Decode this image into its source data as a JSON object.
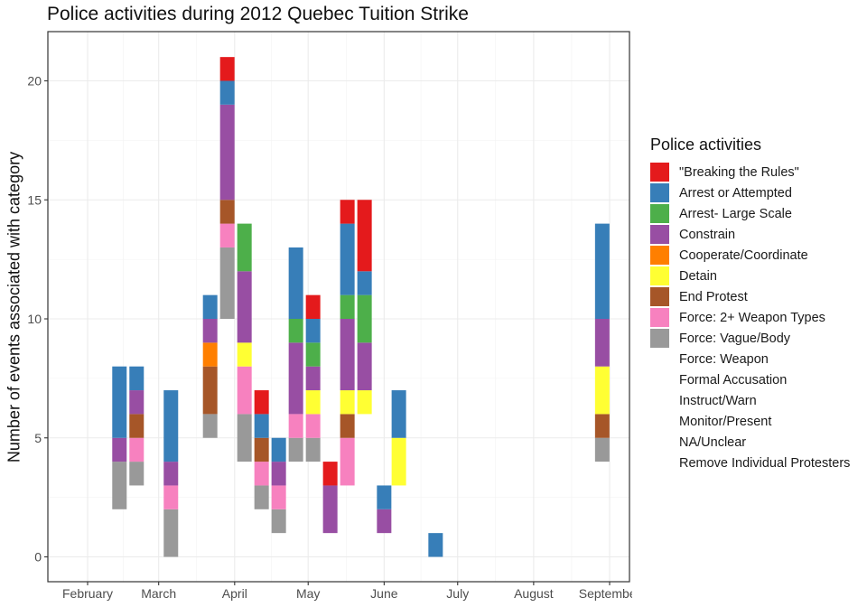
{
  "chart_data": {
    "type": "bar",
    "title": "Police activities during 2012 Quebec Tuition Strike",
    "xlabel": "",
    "ylabel": "Number of events associated with category",
    "ylim": [
      0,
      22
    ],
    "y_ticks": [
      0,
      5,
      10,
      15,
      20
    ],
    "x_ticks": [
      "February",
      "March",
      "April",
      "May",
      "June",
      "July",
      "August",
      "September"
    ],
    "grid": true,
    "legend": {
      "title": "Police activities",
      "placement": "right",
      "items": [
        {
          "label": "\"Breaking the Rules\"",
          "color": "#e41a1c"
        },
        {
          "label": "Arrest or Attempted",
          "color": "#377eb8"
        },
        {
          "label": "Arrest- Large Scale",
          "color": "#4daf4a"
        },
        {
          "label": "Constrain",
          "color": "#984ea3"
        },
        {
          "label": "Cooperate/Coordinate",
          "color": "#ff7f00"
        },
        {
          "label": "Detain",
          "color": "#ffff33"
        },
        {
          "label": "End Protest",
          "color": "#a65628"
        },
        {
          "label": "Force: 2+ Weapon Types",
          "color": "#f781bf"
        },
        {
          "label": "Force: Vague/Body",
          "color": "#999999"
        },
        {
          "label": "Force: Weapon",
          "color": null
        },
        {
          "label": "Formal Accusation",
          "color": null
        },
        {
          "label": "Instruct/Warn",
          "color": null
        },
        {
          "label": "Monitor/Present",
          "color": null
        },
        {
          "label": "NA/Unclear",
          "color": null
        },
        {
          "label": "Remove Individual Protesters",
          "color": null
        }
      ]
    },
    "bars": [
      {
        "x": "2012-02-14",
        "segments": [
          {
            "category": "Force: Vague/Body",
            "from": 2,
            "to": 4
          },
          {
            "category": "Constrain",
            "from": 4,
            "to": 5
          },
          {
            "category": "Arrest or Attempted",
            "from": 5,
            "to": 8
          }
        ]
      },
      {
        "x": "2012-02-21",
        "segments": [
          {
            "category": "Force: Vague/Body",
            "from": 3,
            "to": 4
          },
          {
            "category": "Force: 2+ Weapon Types",
            "from": 4,
            "to": 5
          },
          {
            "category": "End Protest",
            "from": 5,
            "to": 6
          },
          {
            "category": "Constrain",
            "from": 6,
            "to": 7
          },
          {
            "category": "Arrest or Attempted",
            "from": 7,
            "to": 8
          }
        ]
      },
      {
        "x": "2012-03-06",
        "segments": [
          {
            "category": "Force: Vague/Body",
            "from": 0,
            "to": 2
          },
          {
            "category": "Force: 2+ Weapon Types",
            "from": 2,
            "to": 3
          },
          {
            "category": "Constrain",
            "from": 3,
            "to": 4
          },
          {
            "category": "Arrest or Attempted",
            "from": 4,
            "to": 7
          }
        ]
      },
      {
        "x": "2012-03-22",
        "segments": [
          {
            "category": "Force: Vague/Body",
            "from": 5,
            "to": 6
          },
          {
            "category": "End Protest",
            "from": 6,
            "to": 8
          },
          {
            "category": "Cooperate/Coordinate",
            "from": 8,
            "to": 9
          },
          {
            "category": "Constrain",
            "from": 9,
            "to": 10
          },
          {
            "category": "Arrest or Attempted",
            "from": 10,
            "to": 11
          }
        ]
      },
      {
        "x": "2012-03-29",
        "segments": [
          {
            "category": "Force: Vague/Body",
            "from": 10,
            "to": 13
          },
          {
            "category": "Force: 2+ Weapon Types",
            "from": 13,
            "to": 14
          },
          {
            "category": "End Protest",
            "from": 14,
            "to": 15
          },
          {
            "category": "Constrain",
            "from": 15,
            "to": 19
          },
          {
            "category": "Arrest or Attempted",
            "from": 19,
            "to": 20
          },
          {
            "category": "\"Breaking the Rules\"",
            "from": 20,
            "to": 21
          }
        ]
      },
      {
        "x": "2012-04-05",
        "segments": [
          {
            "category": "Force: Vague/Body",
            "from": 4,
            "to": 6
          },
          {
            "category": "Force: 2+ Weapon Types",
            "from": 6,
            "to": 8
          },
          {
            "category": "Detain",
            "from": 8,
            "to": 9
          },
          {
            "category": "Constrain",
            "from": 9,
            "to": 12
          },
          {
            "category": "Arrest- Large Scale",
            "from": 12,
            "to": 14
          }
        ]
      },
      {
        "x": "2012-04-12",
        "segments": [
          {
            "category": "Force: Vague/Body",
            "from": 2,
            "to": 3
          },
          {
            "category": "Force: 2+ Weapon Types",
            "from": 3,
            "to": 4
          },
          {
            "category": "End Protest",
            "from": 4,
            "to": 5
          },
          {
            "category": "Arrest or Attempted",
            "from": 5,
            "to": 6
          },
          {
            "category": "\"Breaking the Rules\"",
            "from": 6,
            "to": 7
          }
        ]
      },
      {
        "x": "2012-04-19",
        "segments": [
          {
            "category": "Force: Vague/Body",
            "from": 1,
            "to": 2
          },
          {
            "category": "Force: 2+ Weapon Types",
            "from": 2,
            "to": 3
          },
          {
            "category": "Constrain",
            "from": 3,
            "to": 4
          },
          {
            "category": "Arrest or Attempted",
            "from": 4,
            "to": 5
          }
        ]
      },
      {
        "x": "2012-04-26",
        "segments": [
          {
            "category": "Force: Vague/Body",
            "from": 4,
            "to": 5
          },
          {
            "category": "Force: 2+ Weapon Types",
            "from": 5,
            "to": 6
          },
          {
            "category": "Constrain",
            "from": 6,
            "to": 9
          },
          {
            "category": "Arrest- Large Scale",
            "from": 9,
            "to": 10
          },
          {
            "category": "Arrest or Attempted",
            "from": 10,
            "to": 13
          }
        ]
      },
      {
        "x": "2012-05-03",
        "segments": [
          {
            "category": "Force: Vague/Body",
            "from": 4,
            "to": 5
          },
          {
            "category": "Force: 2+ Weapon Types",
            "from": 5,
            "to": 6
          },
          {
            "category": "Detain",
            "from": 6,
            "to": 7
          },
          {
            "category": "Constrain",
            "from": 7,
            "to": 8
          },
          {
            "category": "Arrest- Large Scale",
            "from": 8,
            "to": 9
          },
          {
            "category": "Arrest or Attempted",
            "from": 9,
            "to": 10
          },
          {
            "category": "\"Breaking the Rules\"",
            "from": 10,
            "to": 11
          }
        ]
      },
      {
        "x": "2012-05-10",
        "segments": [
          {
            "category": "Constrain",
            "from": 1,
            "to": 3
          },
          {
            "category": "\"Breaking the Rules\"",
            "from": 3,
            "to": 4
          }
        ]
      },
      {
        "x": "2012-05-17",
        "segments": [
          {
            "category": "Force: 2+ Weapon Types",
            "from": 3,
            "to": 5
          },
          {
            "category": "End Protest",
            "from": 5,
            "to": 6
          },
          {
            "category": "Detain",
            "from": 6,
            "to": 7
          },
          {
            "category": "Constrain",
            "from": 7,
            "to": 10
          },
          {
            "category": "Arrest- Large Scale",
            "from": 10,
            "to": 11
          },
          {
            "category": "Arrest or Attempted",
            "from": 11,
            "to": 14
          },
          {
            "category": "\"Breaking the Rules\"",
            "from": 14,
            "to": 15
          }
        ]
      },
      {
        "x": "2012-05-24",
        "segments": [
          {
            "category": "Detain",
            "from": 6,
            "to": 7
          },
          {
            "category": "Constrain",
            "from": 7,
            "to": 9
          },
          {
            "category": "Arrest- Large Scale",
            "from": 9,
            "to": 11
          },
          {
            "category": "Arrest or Attempted",
            "from": 11,
            "to": 12
          },
          {
            "category": "\"Breaking the Rules\"",
            "from": 12,
            "to": 15
          }
        ]
      },
      {
        "x": "2012-06-01",
        "segments": [
          {
            "category": "Constrain",
            "from": 1,
            "to": 2
          },
          {
            "category": "Arrest or Attempted",
            "from": 2,
            "to": 3
          }
        ]
      },
      {
        "x": "2012-06-07",
        "segments": [
          {
            "category": "Detain",
            "from": 3,
            "to": 5
          },
          {
            "category": "Arrest or Attempted",
            "from": 5,
            "to": 7
          }
        ]
      },
      {
        "x": "2012-06-22",
        "segments": [
          {
            "category": "Arrest or Attempted",
            "from": 0,
            "to": 1
          }
        ]
      },
      {
        "x": "2012-08-29",
        "segments": [
          {
            "category": "Force: Vague/Body",
            "from": 4,
            "to": 5
          },
          {
            "category": "End Protest",
            "from": 5,
            "to": 6
          },
          {
            "category": "Detain",
            "from": 6,
            "to": 8
          },
          {
            "category": "Constrain",
            "from": 8,
            "to": 10
          },
          {
            "category": "Arrest or Attempted",
            "from": 10,
            "to": 14
          }
        ]
      }
    ]
  }
}
